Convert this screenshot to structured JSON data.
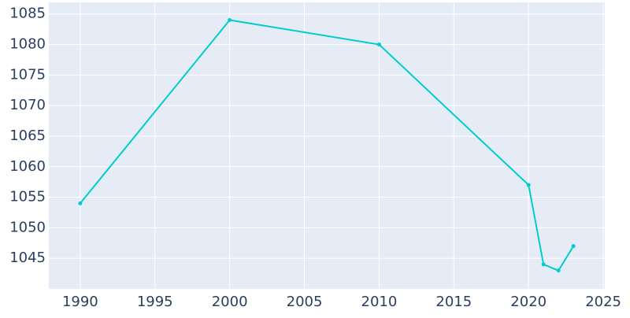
{
  "chart_data": {
    "type": "line",
    "x": [
      1990,
      2000,
      2010,
      2020,
      2021,
      2022,
      2023
    ],
    "series": [
      {
        "color": "#00cdcd",
        "values": [
          1054,
          1084,
          1080,
          1057,
          1044,
          1043,
          1047
        ]
      }
    ],
    "xlim": [
      1987.9,
      2025.1
    ],
    "xticks": [
      1990,
      1995,
      2000,
      2005,
      2010,
      2015,
      2020,
      2025
    ],
    "ylim": [
      1040,
      1086.9
    ],
    "yticks": [
      1045,
      1050,
      1055,
      1060,
      1065,
      1070,
      1075,
      1080,
      1085
    ],
    "grid": true
  }
}
